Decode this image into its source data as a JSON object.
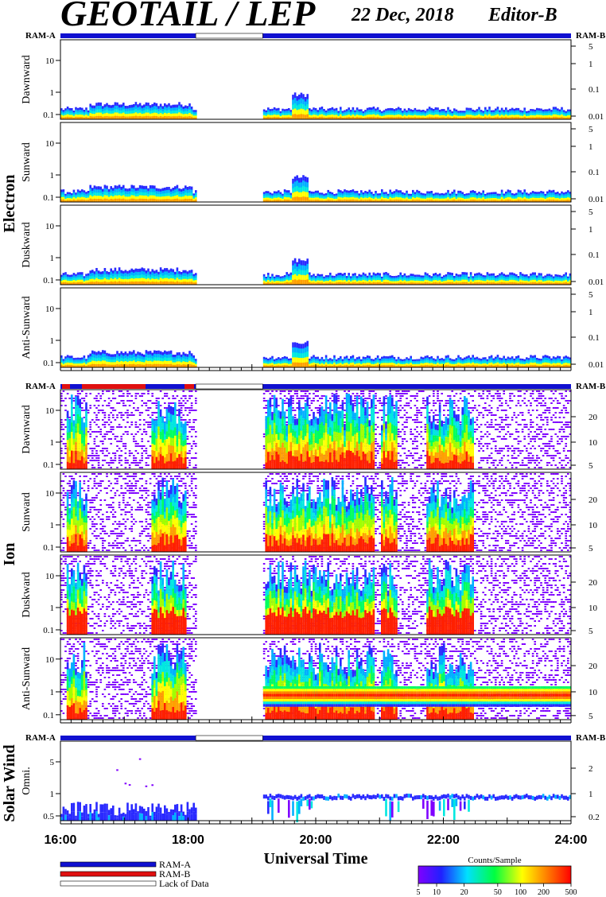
{
  "header": {
    "title": "GEOTAIL / LEP",
    "date": "22 Dec, 2018",
    "editor": "Editor-B"
  },
  "status_bar_labels": {
    "left": "RAM-A",
    "right": "RAM-B"
  },
  "groups": {
    "electron": "Electron",
    "ion": "Ion",
    "solar_wind": "Solar Wind"
  },
  "legend": {
    "items": [
      "RAM-A",
      "RAM-B",
      "Lack of Data"
    ],
    "colors": [
      "#1010d0",
      "#e01010",
      "#ffffff"
    ]
  },
  "colorbar": {
    "title": "Counts/Sample",
    "ticks": [
      "5",
      "10",
      "20",
      "50",
      "100",
      "200",
      "500"
    ]
  },
  "chart_data": {
    "type": "heatmap",
    "xlabel": "Universal Time",
    "x_ticks": [
      "16:00",
      "18:00",
      "20:00",
      "22:00",
      "24:00"
    ],
    "x_range": [
      16,
      24
    ],
    "data_gaps": [
      [
        18.12,
        19.17
      ]
    ],
    "panels": [
      {
        "group": "electron",
        "label": "Dawnward",
        "left_ticks": [
          "10",
          "1",
          "0.1"
        ],
        "right_ticks": [
          "5",
          "1",
          "0.1",
          "0.01"
        ]
      },
      {
        "group": "electron",
        "label": "Sunward",
        "left_ticks": [
          "10",
          "1",
          "0.1"
        ],
        "right_ticks": [
          "5",
          "1",
          "0.1",
          "0.01"
        ]
      },
      {
        "group": "electron",
        "label": "Duskward",
        "left_ticks": [
          "10",
          "1",
          "0.1"
        ],
        "right_ticks": [
          "5",
          "1",
          "0.1",
          "0.01"
        ]
      },
      {
        "group": "electron",
        "label": "Anti-Sunward",
        "left_ticks": [
          "10",
          "1",
          "0.1"
        ],
        "right_ticks": [
          "5",
          "1",
          "0.1",
          "0.01"
        ]
      },
      {
        "group": "ion",
        "label": "Dawnward",
        "left_ticks": [
          "10",
          "1",
          "0.1"
        ],
        "right_ticks": [
          "20",
          "10",
          "5"
        ]
      },
      {
        "group": "ion",
        "label": "Sunward",
        "left_ticks": [
          "10",
          "1",
          "0.1"
        ],
        "right_ticks": [
          "20",
          "10",
          "5"
        ]
      },
      {
        "group": "ion",
        "label": "Duskward",
        "left_ticks": [
          "10",
          "1",
          "0.1"
        ],
        "right_ticks": [
          "20",
          "10",
          "5"
        ]
      },
      {
        "group": "ion",
        "label": "Anti-Sunward",
        "left_ticks": [
          "10",
          "1",
          "0.1"
        ],
        "right_ticks": [
          "20",
          "10",
          "5"
        ]
      },
      {
        "group": "solar_wind",
        "label": "Omni.",
        "left_ticks": [
          "5",
          "1",
          "0.5"
        ],
        "right_ticks": [
          "2",
          "1",
          "0.2"
        ]
      }
    ]
  }
}
